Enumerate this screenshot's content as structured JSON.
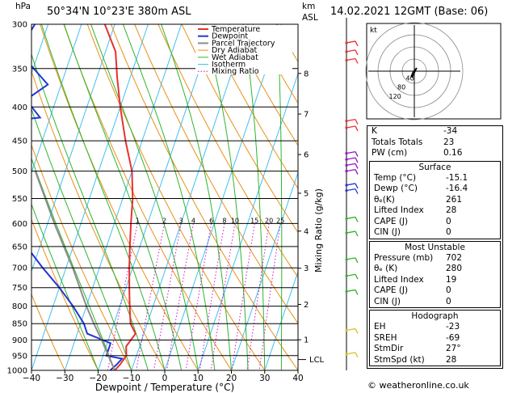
{
  "header": {
    "hpa_label": "hPa",
    "location": "50°34'N  10°23'E  380m  ASL",
    "km_label": "km",
    "asl_label": "ASL",
    "datetime": "14.02.2021  12GMT  (Base: 06)"
  },
  "chart_data": {
    "type": "line",
    "title": "50°34'N  10°23'E  380m  ASL",
    "xlabel": "Dewpoint / Temperature (°C)",
    "ylabel": "hPa",
    "right_label": "Mixing Ratio (g/kg)",
    "x_ticks": [
      -40,
      -30,
      -20,
      -10,
      0,
      10,
      20,
      30,
      40
    ],
    "x_tick_labels": [
      "−40",
      "−30",
      "−20",
      "−10",
      "0",
      "10",
      "20",
      "30",
      "40"
    ],
    "pressure_levels": [
      300,
      350,
      400,
      450,
      500,
      550,
      600,
      650,
      700,
      750,
      800,
      850,
      900,
      950,
      1000
    ],
    "km_ticks": [
      {
        "label": "8",
        "p": 356
      },
      {
        "label": "7",
        "p": 410
      },
      {
        "label": "6",
        "p": 472
      },
      {
        "label": "5",
        "p": 540
      },
      {
        "label": "4",
        "p": 616
      },
      {
        "label": "3",
        "p": 701
      },
      {
        "label": "2",
        "p": 795
      },
      {
        "label": "1",
        "p": 899
      }
    ],
    "lcl_label": "LCL",
    "lcl_p": 963,
    "mixing_ratio_labels": [
      "1",
      "2",
      "3",
      "4",
      "6",
      "8",
      "10",
      "15",
      "20",
      "25"
    ],
    "legend": [
      "Temperature",
      "Dewpoint",
      "Parcel Trajectory",
      "Dry Adiabat",
      "Wet Adiabat",
      "Isotherm",
      "Mixing Ratio"
    ],
    "colors": {
      "temperature": "#e8312f",
      "dewpoint": "#2436d6",
      "parcel": "#8d8d8d",
      "dry_adiabat": "#e8901a",
      "wet_adiabat": "#2fb52f",
      "isotherm": "#40c0ef",
      "mixing_ratio": "#d010c8"
    },
    "series": [
      {
        "name": "Temperature",
        "points": [
          {
            "p": 300,
            "t": -53
          },
          {
            "p": 330,
            "t": -47
          },
          {
            "p": 360,
            "t": -44
          },
          {
            "p": 400,
            "t": -40
          },
          {
            "p": 450,
            "t": -35
          },
          {
            "p": 500,
            "t": -30
          },
          {
            "p": 550,
            "t": -27
          },
          {
            "p": 600,
            "t": -25
          },
          {
            "p": 650,
            "t": -23
          },
          {
            "p": 700,
            "t": -21
          },
          {
            "p": 750,
            "t": -19
          },
          {
            "p": 800,
            "t": -17
          },
          {
            "p": 850,
            "t": -15
          },
          {
            "p": 880,
            "t": -12.5
          },
          {
            "p": 920,
            "t": -14
          },
          {
            "p": 950,
            "t": -13
          },
          {
            "p": 980,
            "t": -14
          },
          {
            "p": 1000,
            "t": -15
          }
        ]
      },
      {
        "name": "Dewpoint",
        "points": [
          {
            "p": 300,
            "t": -74
          },
          {
            "p": 330,
            "t": -76
          },
          {
            "p": 370,
            "t": -64
          },
          {
            "p": 390,
            "t": -69
          },
          {
            "p": 415,
            "t": -63
          },
          {
            "p": 425,
            "t": -82
          },
          {
            "p": 460,
            "t": -80
          },
          {
            "p": 500,
            "t": -67
          },
          {
            "p": 530,
            "t": -62
          },
          {
            "p": 580,
            "t": -60
          },
          {
            "p": 650,
            "t": -54
          },
          {
            "p": 700,
            "t": -47
          },
          {
            "p": 750,
            "t": -40
          },
          {
            "p": 800,
            "t": -34
          },
          {
            "p": 850,
            "t": -29
          },
          {
            "p": 880,
            "t": -27
          },
          {
            "p": 910,
            "t": -19
          },
          {
            "p": 950,
            "t": -19
          },
          {
            "p": 960,
            "t": -14
          },
          {
            "p": 980,
            "t": -15
          },
          {
            "p": 1000,
            "t": -16.4
          }
        ]
      },
      {
        "name": "Parcel Trajectory",
        "points": [
          {
            "p": 1000,
            "t": -15
          },
          {
            "p": 963,
            "t": -17.5
          },
          {
            "p": 900,
            "t": -22
          },
          {
            "p": 850,
            "t": -26
          },
          {
            "p": 800,
            "t": -30
          },
          {
            "p": 700,
            "t": -38
          },
          {
            "p": 600,
            "t": -48
          },
          {
            "p": 500,
            "t": -59
          }
        ]
      }
    ]
  },
  "hodograph": {
    "label": "kt",
    "ring_labels": [
      "40",
      "80",
      "120"
    ]
  },
  "indices": {
    "top": [
      {
        "label": "K",
        "value": "-34"
      },
      {
        "label": "Totals Totals",
        "value": "23"
      },
      {
        "label": "PW (cm)",
        "value": "0.16"
      }
    ],
    "surface": {
      "title": "Surface",
      "rows": [
        {
          "label": "Temp (°C)",
          "value": "-15.1"
        },
        {
          "label": "Dewp (°C)",
          "value": "-16.4"
        },
        {
          "label": "θₑ(K)",
          "value": "261"
        },
        {
          "label": "Lifted Index",
          "value": "28"
        },
        {
          "label": "CAPE (J)",
          "value": "0"
        },
        {
          "label": "CIN (J)",
          "value": "0"
        }
      ]
    },
    "most_unstable": {
      "title": "Most Unstable",
      "rows": [
        {
          "label": "Pressure (mb)",
          "value": "702"
        },
        {
          "label": "θₑ (K)",
          "value": "280"
        },
        {
          "label": "Lifted Index",
          "value": "19"
        },
        {
          "label": "CAPE (J)",
          "value": "0"
        },
        {
          "label": "CIN (J)",
          "value": "0"
        }
      ]
    },
    "hodograph": {
      "title": "Hodograph",
      "rows": [
        {
          "label": "EH",
          "value": "-23"
        },
        {
          "label": "SREH",
          "value": "-69"
        },
        {
          "label": "StmDir",
          "value": "27°"
        },
        {
          "label": "StmSpd (kt)",
          "value": "28"
        }
      ]
    }
  },
  "footer": "© weatheronline.co.uk"
}
